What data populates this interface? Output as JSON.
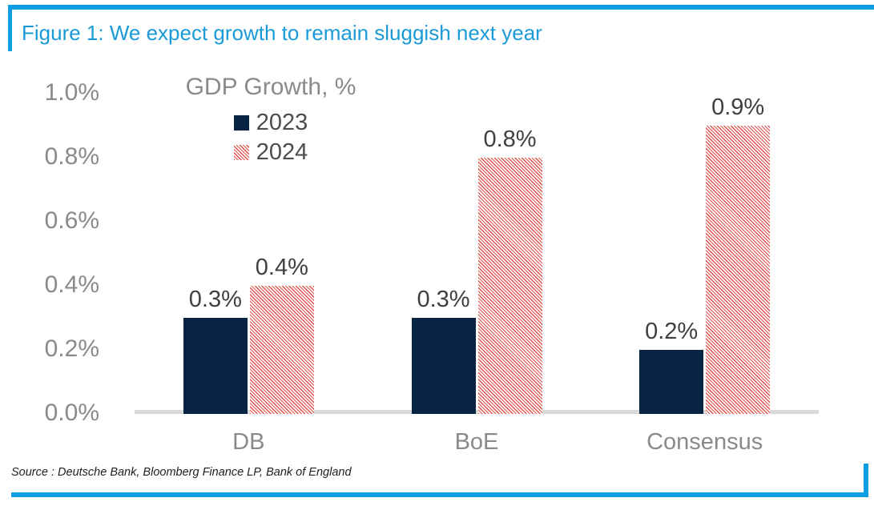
{
  "colors": {
    "accent_blue": "#0d9de4",
    "title_blue": "#1b9ad8",
    "navy": "#072444",
    "hatch_red": "#e2514b",
    "axis_gray": "#8a8a8a",
    "label_dark": "#404040",
    "legend_text": "#4d4d4d",
    "baseline_gray": "#d9d9d9",
    "source_text": "#1f1f1f"
  },
  "figure": {
    "title": "Figure 1: We expect growth to remain sluggish next year",
    "source": "Source : Deutsche Bank, Bloomberg Finance LP, Bank of England"
  },
  "chart_data": {
    "type": "bar",
    "title": "GDP Growth, %",
    "categories": [
      "DB",
      "BoE",
      "Consensus"
    ],
    "series": [
      {
        "name": "2023",
        "style": "solid",
        "color": "#072444",
        "values": [
          0.3,
          0.3,
          0.2
        ]
      },
      {
        "name": "2024",
        "style": "hatched",
        "color": "#e2514b",
        "values": [
          0.4,
          0.8,
          0.9
        ]
      }
    ],
    "data_labels": [
      [
        "0.3%",
        "0.4%"
      ],
      [
        "0.3%",
        "0.8%"
      ],
      [
        "0.2%",
        "0.9%"
      ]
    ],
    "ylabel_ticks": [
      "1.0%",
      "0.8%",
      "0.6%",
      "0.4%",
      "0.2%",
      "0.0%"
    ],
    "ylim": [
      0,
      1.0
    ],
    "ytick_step": 0.2,
    "grid": false,
    "legend_position": "top-left-inside"
  }
}
